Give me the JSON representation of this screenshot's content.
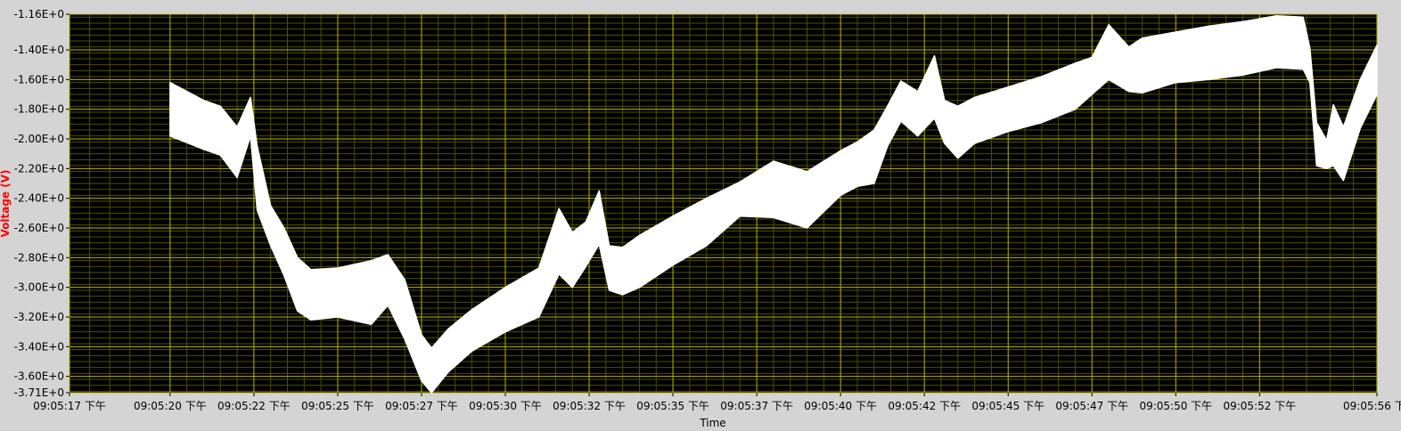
{
  "chart_data": {
    "type": "area",
    "title": "",
    "xlabel": "Time",
    "ylabel": "Voltage (V)",
    "grid": true,
    "legend": "none",
    "colors": {
      "background": "#d4d4d4",
      "plot_background": "#000000",
      "major_grid": "#b7b700",
      "minor_grid": "#4f4f00",
      "trace": "#ffffff",
      "ylabel": "#ff0000",
      "text": "#000000"
    },
    "x_ticks": [
      {
        "t": 17.0,
        "label": "09:05:17 下午"
      },
      {
        "t": 20.0,
        "label": "09:05:20 下午"
      },
      {
        "t": 22.5,
        "label": "09:05:22 下午"
      },
      {
        "t": 25.0,
        "label": "09:05:25 下午"
      },
      {
        "t": 27.5,
        "label": "09:05:27 下午"
      },
      {
        "t": 30.0,
        "label": "09:05:30 下午"
      },
      {
        "t": 32.5,
        "label": "09:05:32 下午"
      },
      {
        "t": 35.0,
        "label": "09:05:35 下午"
      },
      {
        "t": 37.5,
        "label": "09:05:37 下午"
      },
      {
        "t": 40.0,
        "label": "09:05:40 下午"
      },
      {
        "t": 42.5,
        "label": "09:05:42 下午"
      },
      {
        "t": 45.0,
        "label": "09:05:45 下午"
      },
      {
        "t": 47.5,
        "label": "09:05:47 下午"
      },
      {
        "t": 50.0,
        "label": "09:05:50 下午"
      },
      {
        "t": 52.5,
        "label": "09:05:52 下午"
      },
      {
        "t": 56.0,
        "label": "09:05:56 下"
      }
    ],
    "y_ticks": [
      {
        "v": -1.16,
        "label": "-1.16E+0"
      },
      {
        "v": -1.4,
        "label": "-1.40E+0"
      },
      {
        "v": -1.6,
        "label": "-1.60E+0"
      },
      {
        "v": -1.8,
        "label": "-1.80E+0"
      },
      {
        "v": -2.0,
        "label": "-2.00E+0"
      },
      {
        "v": -2.2,
        "label": "-2.20E+0"
      },
      {
        "v": -2.4,
        "label": "-2.40E+0"
      },
      {
        "v": -2.6,
        "label": "-2.60E+0"
      },
      {
        "v": -2.8,
        "label": "-2.80E+0"
      },
      {
        "v": -3.0,
        "label": "-3.00E+0"
      },
      {
        "v": -3.2,
        "label": "-3.20E+0"
      },
      {
        "v": -3.4,
        "label": "-3.40E+0"
      },
      {
        "v": -3.6,
        "label": "-3.60E+0"
      },
      {
        "v": -3.71,
        "label": "-3.71E+0"
      }
    ],
    "xlim": [
      "09:05:17",
      "09:05:56"
    ],
    "ylim": [
      -3.71,
      -1.16
    ],
    "series": [
      {
        "x": [
          "09:05:20",
          "09:05:21",
          "09:05:21.5",
          "09:05:22",
          "09:05:22.4",
          "09:05:22.6",
          "09:05:23",
          "09:05:23.4",
          "09:05:23.8",
          "09:05:24.2",
          "09:05:25",
          "09:05:26",
          "09:05:26.5",
          "09:05:27",
          "09:05:27.5",
          "09:05:27.8",
          "09:05:28.3",
          "09:05:29",
          "09:05:30",
          "09:05:31",
          "09:05:31.6",
          "09:05:32",
          "09:05:32.4",
          "09:05:32.8",
          "09:05:33.1",
          "09:05:33.5",
          "09:05:34",
          "09:05:35",
          "09:05:36",
          "09:05:37",
          "09:05:38",
          "09:05:39",
          "09:05:40",
          "09:05:40.5",
          "09:05:41",
          "09:05:41.4",
          "09:05:41.8",
          "09:05:42.3",
          "09:05:42.8",
          "09:05:43.1",
          "09:05:43.5",
          "09:05:44",
          "09:05:45",
          "09:05:46",
          "09:05:47",
          "09:05:47.5",
          "09:05:48",
          "09:05:48.6",
          "09:05:49",
          "09:05:50",
          "09:05:51",
          "09:05:52",
          "09:05:53",
          "09:05:53.8",
          "09:05:54",
          "09:05:54.2",
          "09:05:54.5",
          "09:05:54.7",
          "09:05:55",
          "09:05:55.5",
          "09:05:56"
        ],
        "upper": [
          -1.62,
          -1.74,
          -1.78,
          -1.92,
          -1.72,
          -2.05,
          -2.45,
          -2.6,
          -2.8,
          -2.88,
          -2.87,
          -2.82,
          -2.78,
          -2.95,
          -3.32,
          -3.41,
          -3.28,
          -3.15,
          -3.0,
          -2.87,
          -2.47,
          -2.63,
          -2.56,
          -2.35,
          -2.72,
          -2.73,
          -2.65,
          -2.52,
          -2.4,
          -2.29,
          -2.15,
          -2.22,
          -2.08,
          -2.02,
          -1.94,
          -1.78,
          -1.61,
          -1.68,
          -1.44,
          -1.74,
          -1.78,
          -1.72,
          -1.65,
          -1.58,
          -1.49,
          -1.45,
          -1.23,
          -1.38,
          -1.32,
          -1.28,
          -1.24,
          -1.21,
          -1.17,
          -1.18,
          -1.39,
          -1.89,
          -2.01,
          -1.77,
          -1.92,
          -1.6,
          -1.37
        ],
        "lower": [
          -1.98,
          -2.07,
          -2.11,
          -2.26,
          -1.98,
          -2.48,
          -2.72,
          -2.92,
          -3.16,
          -3.22,
          -3.2,
          -3.25,
          -3.12,
          -3.35,
          -3.63,
          -3.71,
          -3.57,
          -3.43,
          -3.3,
          -3.2,
          -2.91,
          -3.0,
          -2.86,
          -2.71,
          -3.02,
          -3.05,
          -3.0,
          -2.85,
          -2.72,
          -2.52,
          -2.53,
          -2.6,
          -2.38,
          -2.32,
          -2.3,
          -2.05,
          -1.88,
          -1.98,
          -1.86,
          -2.03,
          -2.13,
          -2.03,
          -1.95,
          -1.89,
          -1.8,
          -1.7,
          -1.6,
          -1.68,
          -1.69,
          -1.62,
          -1.6,
          -1.57,
          -1.52,
          -1.53,
          -1.62,
          -2.18,
          -2.2,
          -2.18,
          -2.28,
          -1.93,
          -1.7
        ]
      }
    ]
  }
}
